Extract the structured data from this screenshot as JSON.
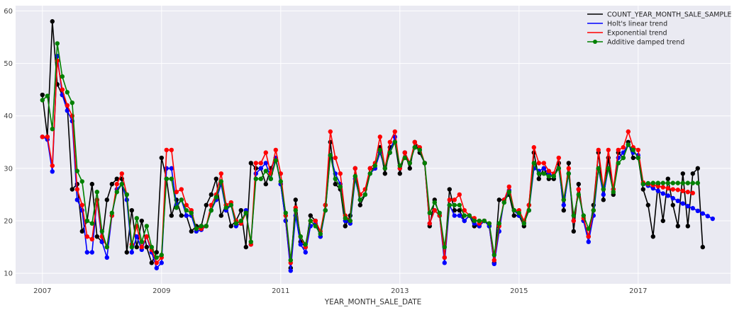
{
  "chart_data": {
    "type": "line",
    "title": "",
    "xlabel": "YEAR_MONTH_SALE_DATE",
    "ylabel": "",
    "xlim": [
      2006.55,
      2018.55
    ],
    "ylim": [
      8,
      61
    ],
    "x_ticks": [
      2007,
      2009,
      2011,
      2013,
      2015,
      2017
    ],
    "y_ticks": [
      10,
      20,
      30,
      40,
      50,
      60
    ],
    "grid": true,
    "legend_position": "top-right",
    "fit_start": 2007.0,
    "forecast_start": 2017.0,
    "step": 0.0833333,
    "series": [
      {
        "name": "COUNT_YEAR_MONTH_SALE_SAMPLE",
        "color": "#000000",
        "values": [
          44,
          36,
          58,
          46,
          44,
          42,
          26,
          27,
          18,
          20,
          27,
          17,
          16,
          24,
          27,
          28,
          28,
          14,
          22,
          15,
          20,
          15,
          12,
          14,
          32,
          28,
          21,
          24,
          21,
          21,
          18,
          19,
          19,
          23,
          25,
          28,
          21,
          23,
          19,
          20,
          22,
          15,
          31,
          30,
          30,
          27,
          30,
          32,
          27,
          20,
          11,
          24,
          16,
          15,
          21,
          20,
          17,
          23,
          35,
          27,
          26,
          19,
          21,
          30,
          23,
          25,
          30,
          30,
          34,
          29,
          34,
          35,
          29,
          33,
          30,
          35,
          33,
          31,
          19,
          24,
          21,
          13,
          26,
          22,
          22,
          20,
          21,
          19,
          19,
          20,
          19,
          12,
          24,
          24,
          25,
          21,
          21,
          19,
          23,
          33,
          28,
          30,
          28,
          28,
          31,
          22,
          31,
          18,
          27,
          20,
          17,
          23,
          33,
          24,
          32,
          25,
          33,
          32,
          35,
          32,
          32,
          26,
          23,
          17,
          27,
          20,
          28,
          23,
          19,
          29,
          19,
          29,
          30,
          15
        ]
      },
      {
        "name": "Holt's linear trend",
        "color": "#0000ff",
        "values": [
          36,
          35.5,
          29.4,
          51.4,
          44,
          41,
          39,
          24,
          22,
          14,
          14,
          24,
          16,
          13,
          21,
          26,
          27,
          24,
          14,
          17,
          14.5,
          17,
          14,
          11,
          12,
          30,
          30,
          23,
          24,
          21,
          21,
          18,
          18.3,
          19,
          22,
          24,
          27,
          22,
          23,
          19,
          19.5,
          22,
          15.5,
          29,
          30,
          31,
          28,
          32,
          27,
          20,
          10.5,
          21,
          15.5,
          14,
          19,
          19.5,
          17,
          22,
          32.5,
          29,
          27,
          20,
          19.5,
          28,
          24,
          25,
          29,
          30,
          33,
          30,
          33,
          36,
          30,
          33,
          31,
          34,
          33.5,
          31,
          19.5,
          22,
          21,
          12,
          23,
          21,
          21,
          20,
          21,
          19.5,
          19,
          20,
          19,
          11.8,
          18,
          24,
          25.8,
          22,
          21,
          19.6,
          22,
          30,
          29.5,
          30,
          29,
          28.5,
          30,
          23,
          29,
          20,
          26,
          20,
          16,
          21,
          30,
          25,
          30,
          26,
          32,
          33,
          34.5,
          33,
          32.5,
          27,
          26.7,
          26.2,
          25.7,
          25.2,
          24.8,
          24.3,
          23.8,
          23.3,
          22.8,
          22.4,
          21.9,
          21.4,
          20.9,
          20.4
        ]
      },
      {
        "name": "Exponential trend",
        "color": "#ff0000",
        "values": [
          36,
          36,
          30.5,
          50.5,
          45,
          42,
          40,
          26,
          23,
          17,
          16.5,
          24,
          17,
          15,
          21,
          27,
          29,
          25,
          15.5,
          19,
          15,
          17,
          14.5,
          12,
          13,
          33.5,
          33.5,
          25.5,
          26,
          23,
          22,
          18.5,
          18.5,
          19,
          23,
          25,
          29,
          23,
          23.5,
          20,
          19.5,
          21.5,
          15.5,
          31,
          31,
          33,
          29,
          33.5,
          29,
          21,
          12,
          22.5,
          17,
          15,
          20,
          20,
          18,
          23,
          37,
          32,
          29,
          21,
          20,
          30,
          25,
          26,
          30,
          31,
          36,
          30,
          35,
          37,
          30,
          33,
          31,
          35,
          34,
          31,
          19.5,
          22,
          21,
          13,
          24,
          24,
          25,
          22,
          21,
          20.5,
          19.5,
          20,
          19.5,
          12.5,
          19,
          24,
          26.5,
          22,
          22,
          20,
          23,
          34,
          31,
          31,
          29.5,
          29,
          32,
          24,
          30,
          20,
          26,
          20.5,
          17,
          22,
          33.5,
          26,
          33.5,
          26,
          33.5,
          34,
          37,
          34,
          33.5,
          27.3,
          27.0,
          26.8,
          26.6,
          26.4,
          26.2,
          26.0,
          25.9,
          25.7,
          25.5,
          25.3
        ]
      },
      {
        "name": "Additive damped trend",
        "color": "#008000",
        "values": [
          43,
          43.8,
          37.5,
          53.8,
          47.5,
          44.5,
          42.5,
          29.5,
          27.5,
          20,
          19.5,
          25.5,
          18,
          15,
          21.5,
          25.5,
          27,
          25,
          15,
          20.5,
          16,
          19,
          15,
          13,
          13.5,
          28,
          28,
          22.5,
          24,
          22,
          21.5,
          18.5,
          19,
          19,
          22,
          24.5,
          27.5,
          22.5,
          23,
          19.5,
          20,
          21.5,
          16,
          28,
          28,
          29.5,
          28,
          31.5,
          27.5,
          21.5,
          12.5,
          22,
          17,
          15.5,
          20,
          19,
          17.5,
          22,
          32.5,
          28,
          26.5,
          20.5,
          20,
          28.5,
          24,
          25,
          29,
          30.5,
          33.5,
          30,
          33,
          35,
          30.5,
          32,
          31,
          34,
          33.5,
          31,
          21.5,
          23.5,
          21.5,
          15,
          23,
          23,
          23,
          21,
          21,
          20,
          20,
          20,
          19.5,
          13.5,
          19.5,
          23.5,
          25.5,
          22,
          21.5,
          19.5,
          22,
          31,
          29,
          29,
          28.5,
          28.5,
          30,
          24,
          29,
          21,
          25,
          21,
          18.5,
          22,
          30,
          26,
          30,
          25.5,
          31,
          32,
          34.5,
          33.5,
          32,
          27,
          27.15,
          27.2,
          27.2,
          27.2,
          27.2,
          27.2,
          27.2,
          27.2,
          27.2,
          27.2,
          27.2
        ]
      }
    ]
  }
}
